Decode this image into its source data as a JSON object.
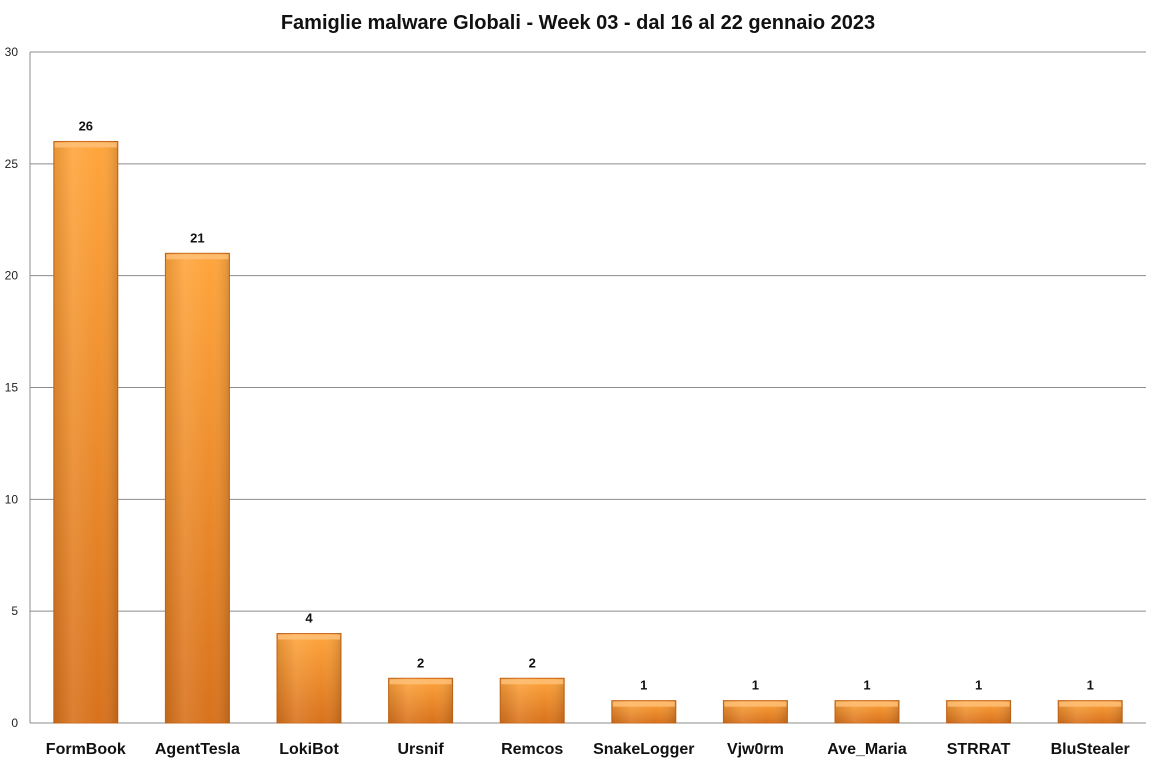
{
  "chart_data": {
    "type": "bar",
    "title": "Famiglie malware Globali - Week 03 - dal 16 al 22 gennaio 2023",
    "xlabel": "",
    "ylabel": "",
    "categories": [
      "FormBook",
      "AgentTesla",
      "LokiBot",
      "Ursnif",
      "Remcos",
      "SnakeLogger",
      "Vjw0rm",
      "Ave_Maria",
      "STRRAT",
      "BluStealer"
    ],
    "values": [
      26,
      21,
      4,
      2,
      2,
      1,
      1,
      1,
      1,
      1
    ],
    "ylim": [
      0,
      30
    ],
    "yticks": [
      0,
      5,
      10,
      15,
      20,
      25,
      30
    ],
    "grid": true,
    "legend": "none",
    "colors": {
      "bar_light": "#ffa53c",
      "bar_dark": "#d8721c",
      "bar_edge": "#c9671a",
      "grid": "#8c8c8c",
      "axis": "#8c8c8c"
    }
  }
}
